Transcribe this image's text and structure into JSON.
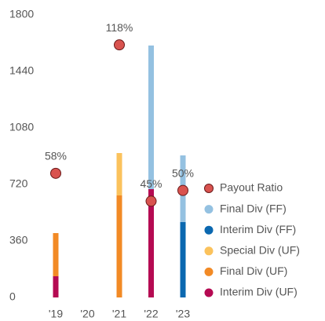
{
  "chart_data": {
    "type": "bar",
    "categories": [
      "'19",
      "'20",
      "'21",
      "'22",
      "'23"
    ],
    "ylim": [
      0,
      1800
    ],
    "yticks": [
      0,
      360,
      720,
      1080,
      1440,
      1800
    ],
    "y2lim": [
      0,
      132
    ],
    "stacked": true,
    "series": [
      {
        "name": "Interim Div (UF)",
        "color": "#b50a52",
        "values": [
          135,
          null,
          null,
          690,
          null
        ]
      },
      {
        "name": "Final Div (UF)",
        "color": "#f28a25",
        "values": [
          275,
          null,
          650,
          null,
          null
        ]
      },
      {
        "name": "Special Div (UF)",
        "color": "#fbc25c",
        "values": [
          null,
          null,
          270,
          null,
          null
        ]
      },
      {
        "name": "Interim Div (FF)",
        "color": "#0b68b0",
        "values": [
          null,
          null,
          null,
          null,
          480
        ]
      },
      {
        "name": "Final Div (FF)",
        "color": "#94c1e1",
        "values": [
          null,
          null,
          null,
          915,
          425
        ]
      },
      {
        "name": "Payout Ratio",
        "color": "#d9534f",
        "type": "scatter",
        "axis": "y2",
        "values": [
          58,
          null,
          118,
          45,
          50
        ],
        "value_labels": [
          "58%",
          null,
          "118%",
          "45%",
          "50%"
        ]
      }
    ]
  }
}
